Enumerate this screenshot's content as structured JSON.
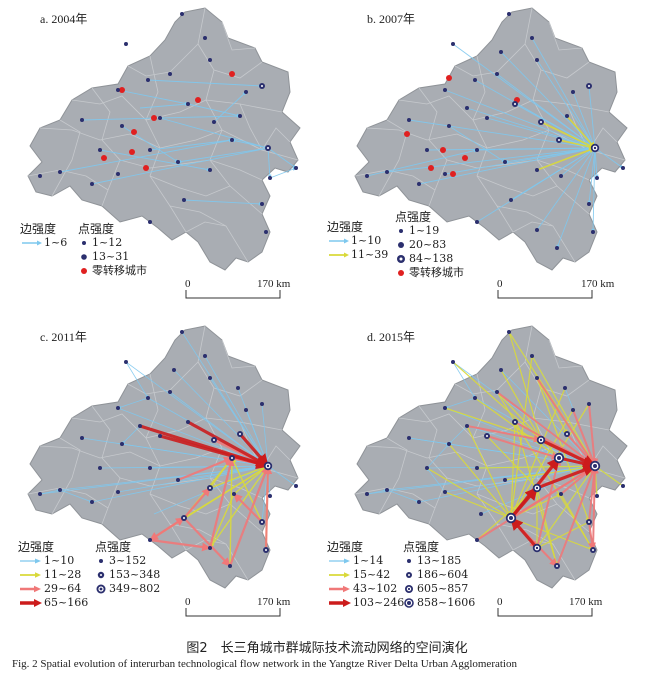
{
  "panels": [
    {
      "title": "a. 2004年",
      "legend_edge_title": "边强度",
      "edge_classes": [
        {
          "label": "1~6",
          "color": "#7ec8ee"
        }
      ],
      "legend_node_title": "点强度",
      "node_classes": [
        {
          "label": "1~12"
        },
        {
          "label": "13~31"
        }
      ],
      "zero_label": "零转移城市",
      "scale_zero": "0",
      "scale_label": "170 km"
    },
    {
      "title": "b. 2007年",
      "legend_edge_title": "边强度",
      "edge_classes": [
        {
          "label": "1~10",
          "color": "#7ec8ee"
        },
        {
          "label": "11~39",
          "color": "#d9d93a"
        }
      ],
      "legend_node_title": "点强度",
      "node_classes": [
        {
          "label": "1~19"
        },
        {
          "label": "20~83"
        },
        {
          "label": "84~138"
        }
      ],
      "zero_label": "零转移城市",
      "scale_zero": "0",
      "scale_label": "170 km"
    },
    {
      "title": "c. 2011年",
      "legend_edge_title": "边强度",
      "edge_classes": [
        {
          "label": "1~10",
          "color": "#7ec8ee"
        },
        {
          "label": "11~28",
          "color": "#d9d93a"
        },
        {
          "label": "29~64",
          "color": "#f07878"
        },
        {
          "label": "65~166",
          "color": "#cc1c1c"
        }
      ],
      "legend_node_title": "点强度",
      "node_classes": [
        {
          "label": "3~152"
        },
        {
          "label": "153~348"
        },
        {
          "label": "349~802"
        }
      ],
      "zero_label": "",
      "scale_zero": "0",
      "scale_label": "170 km"
    },
    {
      "title": "d. 2015年",
      "legend_edge_title": "边强度",
      "edge_classes": [
        {
          "label": "1~14",
          "color": "#7ec8ee"
        },
        {
          "label": "15~42",
          "color": "#d9d93a"
        },
        {
          "label": "43~102",
          "color": "#f07878"
        },
        {
          "label": "103~246",
          "color": "#cc1c1c"
        }
      ],
      "legend_node_title": "点强度",
      "node_classes": [
        {
          "label": "13~185"
        },
        {
          "label": "186~604"
        },
        {
          "label": "605~857"
        },
        {
          "label": "858~1606"
        }
      ],
      "zero_label": "",
      "scale_zero": "0",
      "scale_label": "170 km"
    }
  ],
  "colors": {
    "region_fill": "#a9adb3",
    "edge_low": "#7ec8ee",
    "edge_mid": "#d9d93a",
    "edge_high": "#f07878",
    "edge_top": "#cc1c1c",
    "node": "#2b2f6e",
    "zero_city": "#e02020"
  },
  "caption_cn": "图2　长三角城市群城际技术流动网络的空间演化",
  "caption_en": "Fig. 2   Spatial evolution of interurban technological flow network in the Yangtze River Delta Urban Agglomeration"
}
